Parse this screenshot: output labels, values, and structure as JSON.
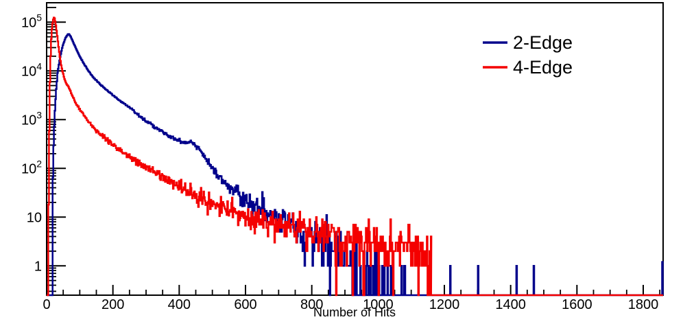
{
  "figure": {
    "background": "#ffffff",
    "frame_color": "#000000"
  },
  "chart_data": {
    "type": "line",
    "subtype": "step-histogram",
    "title": "",
    "xlabel": "Number of Hits",
    "ylabel": "",
    "yscale": "log",
    "grid": false,
    "xlim": [
      0,
      1860
    ],
    "ylim": [
      0.25,
      250000
    ],
    "x_major_ticks": [
      0,
      200,
      400,
      600,
      800,
      1000,
      1200,
      1400,
      1600,
      1800
    ],
    "x_minor_step": 50,
    "y_major_ticks": [
      1,
      10,
      100,
      1000,
      10000,
      100000
    ],
    "y_tick_labels": [
      "1",
      "10",
      "10^2",
      "10^3",
      "10^4",
      "10^5"
    ],
    "legend": {
      "position": "top-right"
    },
    "noise": {
      "poisson_below": 9,
      "lognormal_coeff": 0.434
    },
    "series": [
      {
        "name": "2-Edge",
        "color": "#00008b",
        "seed": 1337,
        "bin_width": 2,
        "range": [
          18,
          1102
        ],
        "anchors": [
          [
            18,
            0.26
          ],
          [
            19,
            60
          ],
          [
            21,
            300
          ],
          [
            24,
            1200
          ],
          [
            28,
            3500
          ],
          [
            33,
            9000
          ],
          [
            40,
            18000
          ],
          [
            48,
            32000
          ],
          [
            56,
            46000
          ],
          [
            62,
            54000
          ],
          [
            66,
            58000
          ],
          [
            72,
            51500
          ],
          [
            80,
            39000
          ],
          [
            90,
            27500
          ],
          [
            100,
            19800
          ],
          [
            112,
            14200
          ],
          [
            125,
            10300
          ],
          [
            140,
            7500
          ],
          [
            158,
            5600
          ],
          [
            178,
            4200
          ],
          [
            200,
            3150
          ],
          [
            225,
            2350
          ],
          [
            250,
            1780
          ],
          [
            273,
            1320
          ],
          [
            300,
            950
          ],
          [
            330,
            690
          ],
          [
            356,
            510
          ],
          [
            380,
            420
          ],
          [
            400,
            372
          ],
          [
            425,
            338
          ],
          [
            440,
            318
          ],
          [
            455,
            272
          ],
          [
            468,
            205
          ],
          [
            480,
            152
          ],
          [
            492,
            116
          ],
          [
            505,
            93
          ],
          [
            520,
            70
          ],
          [
            535,
            56
          ],
          [
            548,
            45
          ],
          [
            565,
            34
          ],
          [
            585,
            25.5
          ],
          [
            605,
            20.5
          ],
          [
            618,
            18.5
          ],
          [
            645,
            14.5
          ],
          [
            665,
            12.2
          ],
          [
            687,
            10.4
          ],
          [
            715,
            8.2
          ],
          [
            740,
            6.9
          ],
          [
            756,
            6.3
          ],
          [
            780,
            5.4
          ],
          [
            805,
            4.6
          ],
          [
            830,
            3.6
          ],
          [
            860,
            2.6
          ],
          [
            890,
            1.8
          ],
          [
            920,
            1.3
          ],
          [
            950,
            0.92
          ],
          [
            980,
            0.62
          ],
          [
            1010,
            0.42
          ],
          [
            1050,
            0.26
          ],
          [
            1100,
            0.13
          ]
        ],
        "spikes": [
          [
            1217,
            1
          ],
          [
            1301,
            1
          ],
          [
            1417,
            1
          ],
          [
            1469,
            1
          ],
          [
            1857,
            1.2
          ]
        ]
      },
      {
        "name": "4-Edge",
        "color": "#f40000",
        "seed": 9001,
        "bin_width": 2,
        "range": [
          5,
          1160
        ],
        "anchors": [
          [
            5,
            0.26
          ],
          [
            6,
            20
          ],
          [
            7,
            120
          ],
          [
            8,
            600
          ],
          [
            9,
            2200
          ],
          [
            10,
            6000
          ],
          [
            12,
            20000
          ],
          [
            14,
            45000
          ],
          [
            16,
            72000
          ],
          [
            18,
            95000
          ],
          [
            20,
            113000
          ],
          [
            22,
            124000
          ],
          [
            24,
            119000
          ],
          [
            26,
            103000
          ],
          [
            28,
            86000
          ],
          [
            30,
            67000
          ],
          [
            33,
            46000
          ],
          [
            36,
            31000
          ],
          [
            40,
            19500
          ],
          [
            44,
            13200
          ],
          [
            48,
            9700
          ],
          [
            53,
            7200
          ],
          [
            58,
            5700
          ],
          [
            66,
            4650
          ],
          [
            75,
            3400
          ],
          [
            85,
            2400
          ],
          [
            95,
            1800
          ],
          [
            108,
            1380
          ],
          [
            120,
            1040
          ],
          [
            135,
            790
          ],
          [
            150,
            590
          ],
          [
            165,
            470
          ],
          [
            180,
            380
          ],
          [
            200,
            300
          ],
          [
            220,
            243
          ],
          [
            240,
            196
          ],
          [
            260,
            158
          ],
          [
            280,
            128
          ],
          [
            300,
            107
          ],
          [
            320,
            87
          ],
          [
            340,
            71
          ],
          [
            360,
            59
          ],
          [
            380,
            49
          ],
          [
            400,
            41.5
          ],
          [
            420,
            35.5
          ],
          [
            440,
            30.5
          ],
          [
            460,
            26
          ],
          [
            480,
            22.3
          ],
          [
            500,
            19.2
          ],
          [
            520,
            16.6
          ],
          [
            545,
            14
          ],
          [
            570,
            12.1
          ],
          [
            600,
            10.5
          ],
          [
            630,
            9.3
          ],
          [
            660,
            8.4
          ],
          [
            690,
            7.6
          ],
          [
            720,
            6.9
          ],
          [
            750,
            6.3
          ],
          [
            780,
            5.7
          ],
          [
            810,
            5.2
          ],
          [
            840,
            4.7
          ],
          [
            870,
            4.3
          ],
          [
            900,
            3.9
          ],
          [
            930,
            3.6
          ],
          [
            960,
            3.3
          ],
          [
            1000,
            3.0
          ],
          [
            1040,
            2.7
          ],
          [
            1080,
            2.4
          ],
          [
            1120,
            2.2
          ],
          [
            1158,
            2.0
          ]
        ],
        "spikes": []
      }
    ]
  }
}
